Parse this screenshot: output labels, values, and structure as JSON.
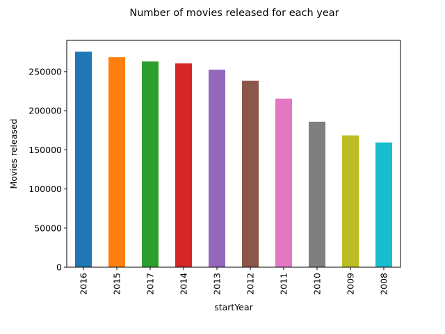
{
  "chart_data": {
    "type": "bar",
    "title": "Number of movies released for each year",
    "xlabel": "startYear",
    "ylabel": "Movies released",
    "categories": [
      "2016",
      "2015",
      "2017",
      "2014",
      "2013",
      "2012",
      "2011",
      "2010",
      "2009",
      "2008"
    ],
    "values": [
      275500,
      268500,
      263000,
      260500,
      252500,
      238500,
      215500,
      186000,
      168500,
      159500
    ],
    "colors": [
      "#1f77b4",
      "#ff7f0e",
      "#2ca02c",
      "#d62728",
      "#9467bd",
      "#8c564b",
      "#e377c2",
      "#7f7f7f",
      "#bcbd22",
      "#17becf"
    ],
    "yticks": [
      "0",
      "50000",
      "100000",
      "150000",
      "200000",
      "250000"
    ],
    "ylim": [
      0,
      290000
    ],
    "grid": false,
    "legend": "none"
  }
}
